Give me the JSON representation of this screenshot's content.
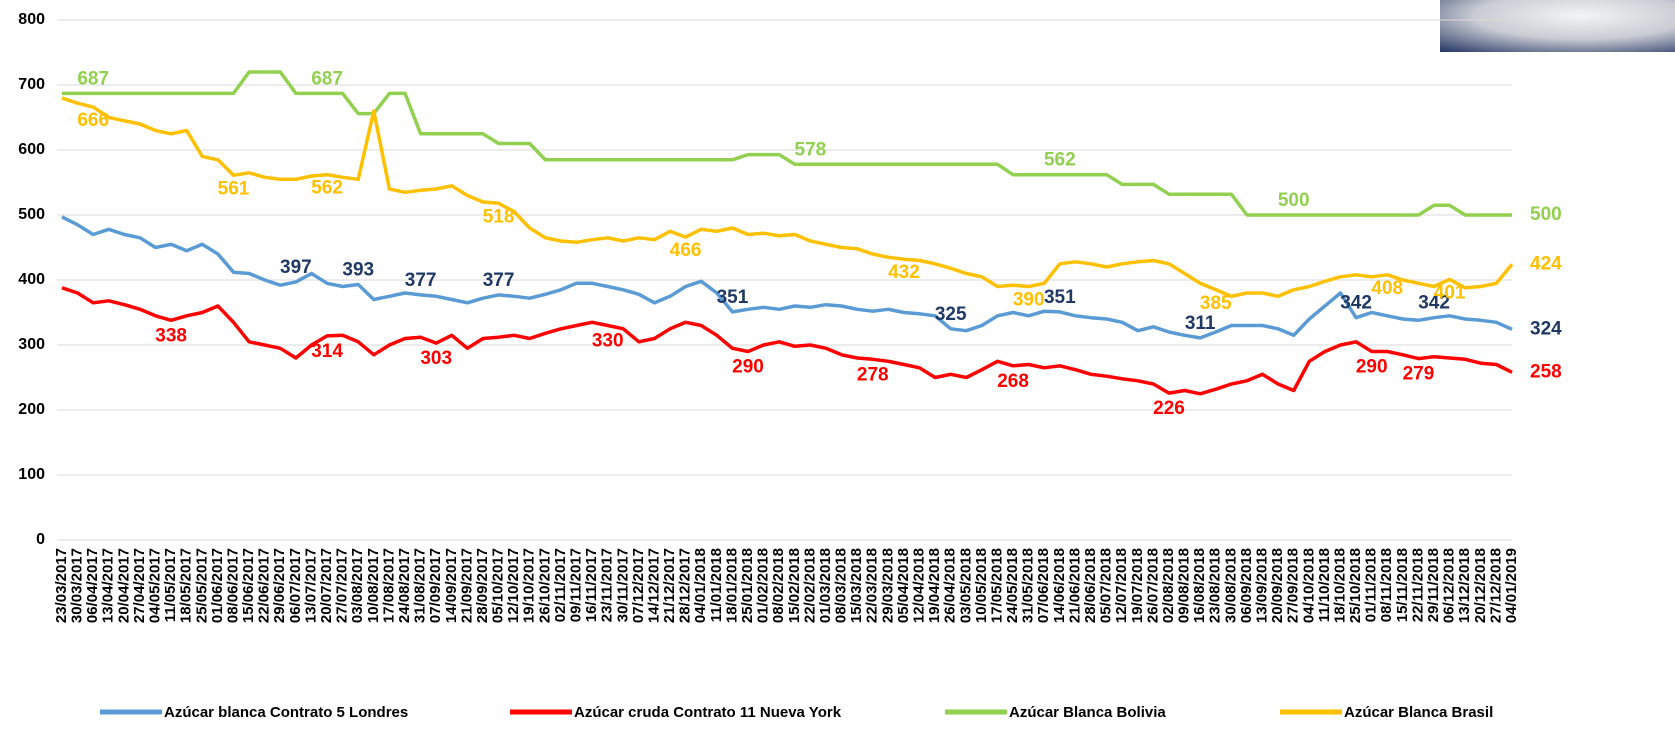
{
  "chart_data": {
    "type": "line",
    "categories": [
      "23/03/2017",
      "30/03/2017",
      "06/04/2017",
      "13/04/2017",
      "20/04/2017",
      "27/04/2017",
      "04/05/2017",
      "11/05/2017",
      "18/05/2017",
      "25/05/2017",
      "01/06/2017",
      "08/06/2017",
      "15/06/2017",
      "22/06/2017",
      "29/06/2017",
      "06/07/2017",
      "13/07/2017",
      "20/07/2017",
      "27/07/2017",
      "03/08/2017",
      "10/08/2017",
      "17/08/2017",
      "24/08/2017",
      "31/08/2017",
      "07/09/2017",
      "14/09/2017",
      "21/09/2017",
      "28/09/2017",
      "05/10/2017",
      "12/10/2017",
      "19/10/2017",
      "26/10/2017",
      "02/11/2017",
      "09/11/2017",
      "16/11/2017",
      "23/11/2017",
      "30/11/2017",
      "07/12/2017",
      "14/12/2017",
      "21/12/2017",
      "28/12/2017",
      "04/01/2018",
      "11/01/2018",
      "18/01/2018",
      "25/01/2018",
      "01/02/2018",
      "08/02/2018",
      "15/02/2018",
      "22/02/2018",
      "01/03/2018",
      "08/03/2018",
      "15/03/2018",
      "22/03/2018",
      "29/03/2018",
      "05/04/2018",
      "12/04/2018",
      "19/04/2018",
      "26/04/2018",
      "03/05/2018",
      "10/05/2018",
      "17/05/2018",
      "24/05/2018",
      "31/05/2018",
      "07/06/2018",
      "14/06/2018",
      "21/06/2018",
      "28/06/2018",
      "05/07/2018",
      "12/07/2018",
      "19/07/2018",
      "26/07/2018",
      "02/08/2018",
      "09/08/2018",
      "16/08/2018",
      "23/08/2018",
      "30/08/2018",
      "06/09/2018",
      "13/09/2018",
      "20/09/2018",
      "27/09/2018",
      "04/10/2018",
      "11/10/2018",
      "18/10/2018",
      "25/10/2018",
      "01/11/2018",
      "08/11/2018",
      "15/11/2018",
      "22/11/2018",
      "29/11/2018",
      "06/12/2018",
      "13/12/2018",
      "20/12/2018",
      "27/12/2018",
      "04/01/2019"
    ],
    "ylim": [
      0,
      800
    ],
    "yticks": [
      0,
      100,
      200,
      300,
      400,
      500,
      600,
      700,
      800
    ],
    "grid": true,
    "series": [
      {
        "name": "Azúcar blanca Contrato 5 Londres",
        "color": "#5b9bd5",
        "label_color": "#1f3864",
        "values": [
          497,
          485,
          470,
          478,
          470,
          465,
          450,
          455,
          445,
          455,
          440,
          412,
          410,
          400,
          392,
          397,
          410,
          395,
          390,
          393,
          370,
          375,
          380,
          377,
          375,
          370,
          365,
          372,
          377,
          375,
          372,
          378,
          385,
          395,
          395,
          390,
          385,
          378,
          365,
          375,
          390,
          398,
          380,
          351,
          355,
          358,
          355,
          360,
          358,
          362,
          360,
          355,
          352,
          355,
          350,
          348,
          345,
          325,
          322,
          330,
          345,
          350,
          345,
          352,
          351,
          345,
          342,
          340,
          335,
          322,
          328,
          320,
          315,
          311,
          320,
          330,
          330,
          330,
          325,
          315,
          340,
          360,
          380,
          342,
          350,
          345,
          340,
          338,
          342,
          345,
          340,
          338,
          335,
          324
        ],
        "data_labels": [
          {
            "index": 15,
            "label": "397"
          },
          {
            "index": 19,
            "label": "393"
          },
          {
            "index": 23,
            "label": "377"
          },
          {
            "index": 28,
            "label": "377"
          },
          {
            "index": 43,
            "label": "351"
          },
          {
            "index": 57,
            "label": "325"
          },
          {
            "index": 64,
            "label": "351"
          },
          {
            "index": 73,
            "label": "311"
          },
          {
            "index": 83,
            "label": "342"
          },
          {
            "index": 88,
            "label": "342"
          },
          {
            "index": 93,
            "label": "324"
          }
        ]
      },
      {
        "name": "Azúcar cruda Contrato 11 Nueva York",
        "color": "#ff0000",
        "label_color": "#ff0000",
        "values": [
          388,
          380,
          365,
          368,
          362,
          355,
          345,
          338,
          345,
          350,
          360,
          335,
          305,
          300,
          295,
          280,
          300,
          314,
          315,
          305,
          285,
          300,
          310,
          312,
          303,
          315,
          295,
          310,
          312,
          315,
          310,
          318,
          325,
          330,
          335,
          330,
          325,
          305,
          310,
          325,
          335,
          330,
          315,
          295,
          290,
          300,
          305,
          298,
          300,
          295,
          285,
          280,
          278,
          275,
          270,
          265,
          250,
          255,
          250,
          262,
          275,
          268,
          270,
          265,
          268,
          262,
          255,
          252,
          248,
          245,
          240,
          226,
          230,
          225,
          232,
          240,
          245,
          255,
          240,
          230,
          275,
          290,
          300,
          305,
          290,
          290,
          285,
          279,
          282,
          280,
          278,
          272,
          270,
          258
        ],
        "data_labels": [
          {
            "index": 7,
            "label": "338"
          },
          {
            "index": 17,
            "label": "314"
          },
          {
            "index": 24,
            "label": "303"
          },
          {
            "index": 35,
            "label": "330"
          },
          {
            "index": 44,
            "label": "290"
          },
          {
            "index": 52,
            "label": "278"
          },
          {
            "index": 61,
            "label": "268"
          },
          {
            "index": 71,
            "label": "226"
          },
          {
            "index": 84,
            "label": "290"
          },
          {
            "index": 87,
            "label": "279"
          },
          {
            "index": 93,
            "label": "258"
          }
        ]
      },
      {
        "name": "Azúcar Blanca Bolivia",
        "color": "#92d050",
        "label_color": "#92d050",
        "values": [
          687,
          687,
          687,
          687,
          687,
          687,
          687,
          687,
          687,
          687,
          687,
          687,
          720,
          720,
          720,
          687,
          687,
          687,
          687,
          656,
          656,
          687,
          687,
          625,
          625,
          625,
          625,
          625,
          610,
          610,
          610,
          585,
          585,
          585,
          585,
          585,
          585,
          585,
          585,
          585,
          585,
          585,
          585,
          585,
          593,
          593,
          593,
          578,
          578,
          578,
          578,
          578,
          578,
          578,
          578,
          578,
          578,
          578,
          578,
          578,
          578,
          562,
          562,
          562,
          562,
          562,
          562,
          562,
          547,
          547,
          547,
          532,
          532,
          532,
          532,
          532,
          500,
          500,
          500,
          500,
          500,
          500,
          500,
          500,
          500,
          500,
          500,
          500,
          515,
          515,
          500,
          500,
          500,
          500
        ],
        "data_labels": [
          {
            "index": 2,
            "label": "687"
          },
          {
            "index": 17,
            "label": "687"
          },
          {
            "index": 48,
            "label": "578"
          },
          {
            "index": 64,
            "label": "562"
          },
          {
            "index": 79,
            "label": "500"
          },
          {
            "index": 93,
            "label": "500"
          }
        ]
      },
      {
        "name": "Azúcar Blanca Brasil",
        "color": "#ffc000",
        "label_color": "#ffc000",
        "values": [
          680,
          672,
          666,
          650,
          645,
          640,
          630,
          625,
          630,
          590,
          585,
          561,
          565,
          558,
          555,
          555,
          560,
          562,
          558,
          555,
          660,
          540,
          535,
          538,
          540,
          545,
          530,
          520,
          518,
          505,
          480,
          465,
          460,
          458,
          462,
          465,
          460,
          465,
          462,
          475,
          466,
          478,
          475,
          480,
          470,
          472,
          468,
          470,
          460,
          455,
          450,
          448,
          440,
          435,
          432,
          430,
          425,
          418,
          410,
          405,
          390,
          392,
          390,
          395,
          425,
          428,
          425,
          420,
          425,
          428,
          430,
          425,
          410,
          395,
          385,
          375,
          380,
          380,
          375,
          385,
          390,
          398,
          405,
          408,
          405,
          408,
          400,
          395,
          390,
          401,
          388,
          390,
          395,
          424
        ],
        "data_labels": [
          {
            "index": 2,
            "label": "666"
          },
          {
            "index": 11,
            "label": "561"
          },
          {
            "index": 17,
            "label": "562"
          },
          {
            "index": 28,
            "label": "518"
          },
          {
            "index": 40,
            "label": "466"
          },
          {
            "index": 54,
            "label": "432"
          },
          {
            "index": 62,
            "label": "390"
          },
          {
            "index": 74,
            "label": "385"
          },
          {
            "index": 85,
            "label": "408"
          },
          {
            "index": 89,
            "label": "401"
          },
          {
            "index": 93,
            "label": "424"
          }
        ]
      }
    ]
  }
}
